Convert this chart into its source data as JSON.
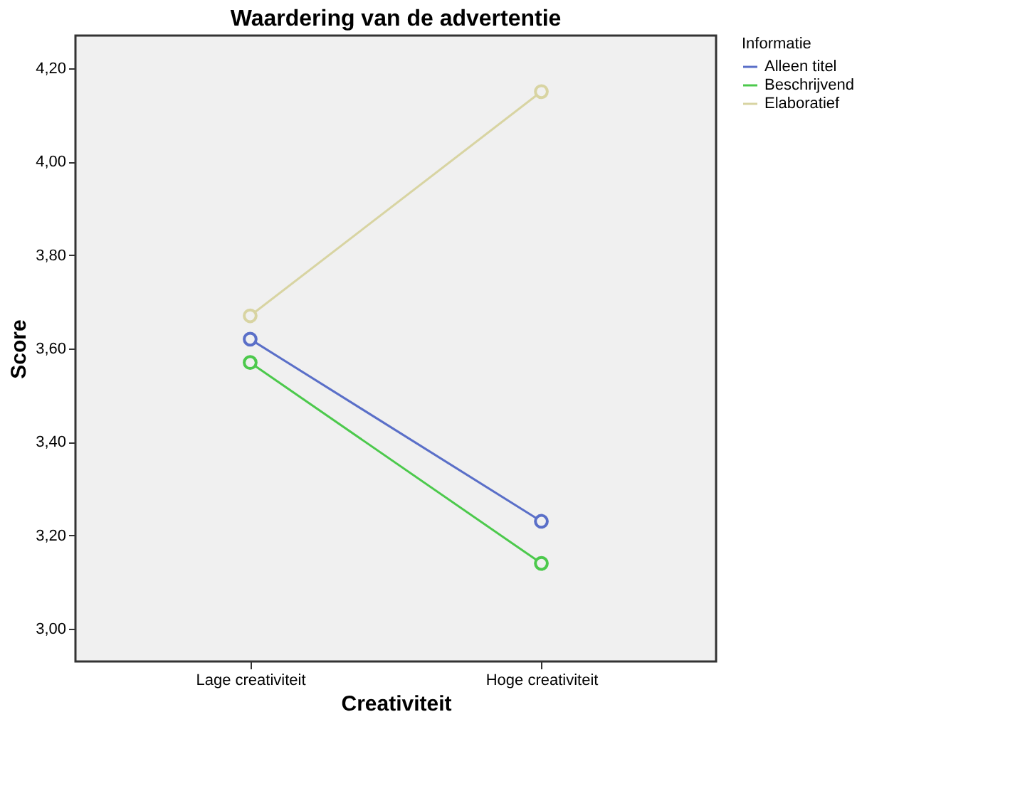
{
  "chart_data": {
    "type": "line",
    "title": "Waardering van de advertentie",
    "xlabel": "Creativiteit",
    "ylabel": "Score",
    "legend_title": "Informatie",
    "categories": [
      "Lage creativiteit",
      "Hoge creativiteit"
    ],
    "series": [
      {
        "name": "Alleen titel",
        "color": "#5a6fc8",
        "values": [
          3.62,
          3.23
        ]
      },
      {
        "name": "Beschrijvend",
        "color": "#4cc94c",
        "values": [
          3.57,
          3.14
        ]
      },
      {
        "name": "Elaboratief",
        "color": "#d8d4a2",
        "values": [
          3.67,
          4.15
        ]
      }
    ],
    "ylim": [
      2.93,
      4.27
    ],
    "yticks": [
      {
        "value": 3.0,
        "label": "3,00"
      },
      {
        "value": 3.2,
        "label": "3,20"
      },
      {
        "value": 3.4,
        "label": "3,40"
      },
      {
        "value": 3.6,
        "label": "3,60"
      },
      {
        "value": 3.8,
        "label": "3,80"
      },
      {
        "value": 4.0,
        "label": "4,00"
      },
      {
        "value": 4.2,
        "label": "4,20"
      }
    ],
    "grid": false,
    "legend": "top right",
    "marker": "circle",
    "line_style": "solid"
  }
}
